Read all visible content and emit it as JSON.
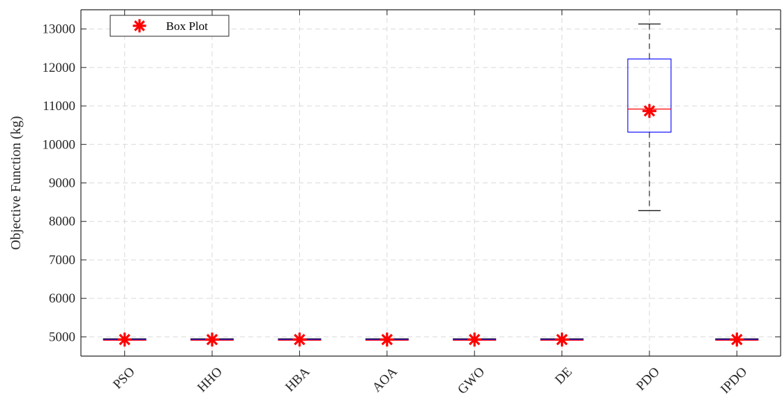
{
  "chart_data": {
    "type": "box",
    "title": "",
    "xlabel": "",
    "ylabel": "Objective Function (kg)",
    "ylim": [
      4500,
      13500
    ],
    "yticks": [
      5000,
      6000,
      7000,
      8000,
      9000,
      10000,
      11000,
      12000,
      13000
    ],
    "grid": true,
    "legend": {
      "position": "top-left",
      "entries": [
        "Box Plot"
      ]
    },
    "colors": {
      "box": "#0000ff",
      "median": "#ff0000",
      "mean_marker": "#ff0000",
      "whisker": "#000000",
      "grid": "#d9d9d9"
    },
    "categories": [
      "PSO",
      "HHO",
      "HBA",
      "AOA",
      "GWO",
      "DE",
      "PDO",
      "IPDO"
    ],
    "boxes": [
      {
        "label": "PSO",
        "min": 4930,
        "q1": 4930,
        "median": 4930,
        "q3": 4930,
        "max": 4930,
        "mean": 4930
      },
      {
        "label": "HHO",
        "min": 4930,
        "q1": 4930,
        "median": 4930,
        "q3": 4930,
        "max": 4930,
        "mean": 4930
      },
      {
        "label": "HBA",
        "min": 4930,
        "q1": 4930,
        "median": 4930,
        "q3": 4930,
        "max": 4930,
        "mean": 4930
      },
      {
        "label": "AOA",
        "min": 4930,
        "q1": 4930,
        "median": 4930,
        "q3": 4930,
        "max": 4930,
        "mean": 4930
      },
      {
        "label": "GWO",
        "min": 4930,
        "q1": 4930,
        "median": 4930,
        "q3": 4930,
        "max": 4930,
        "mean": 4930
      },
      {
        "label": "DE",
        "min": 4930,
        "q1": 4930,
        "median": 4930,
        "q3": 4930,
        "max": 4930,
        "mean": 4930
      },
      {
        "label": "PDO",
        "min": 8280,
        "q1": 10320,
        "median": 10920,
        "q3": 12220,
        "max": 13130,
        "mean": 10870
      },
      {
        "label": "IPDO",
        "min": 4930,
        "q1": 4930,
        "median": 4930,
        "q3": 4930,
        "max": 4930,
        "mean": 4930
      }
    ]
  }
}
